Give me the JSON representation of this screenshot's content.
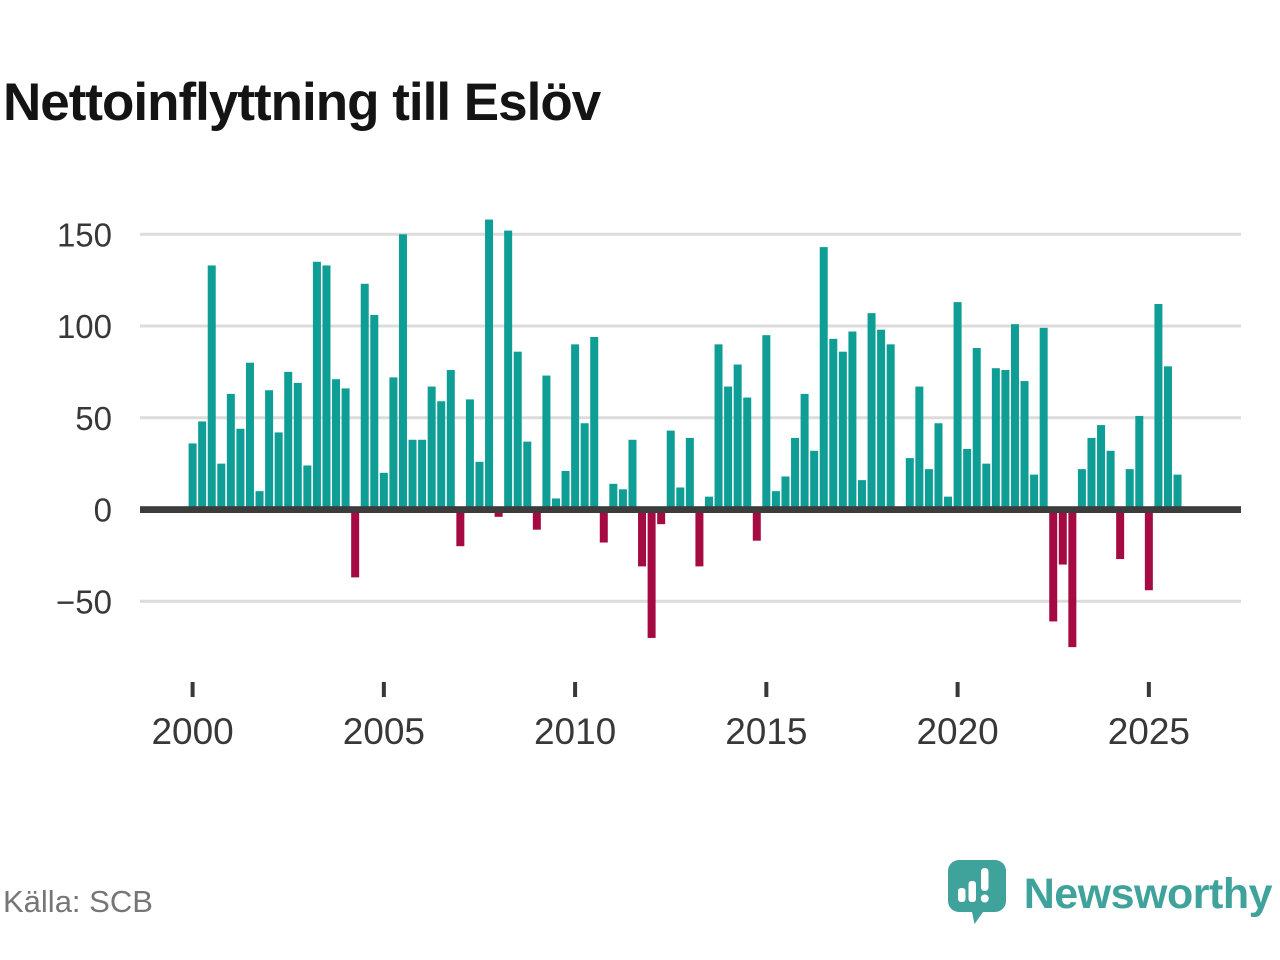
{
  "title": "Nettoinflyttning till Eslöv",
  "source": "Källa: SCB",
  "brand": {
    "name": "Newsworthy",
    "icon": "bar-chart-speech-bubble-icon"
  },
  "colors": {
    "positive_bar": "#0E9E96",
    "negative_bar": "#A50B42",
    "gridline": "#DCDCDC",
    "zero_line": "#3C3C3C",
    "axis_text": "#383838",
    "title_text": "#141414",
    "source_text": "#767676",
    "brand_teal": "#3FA39B"
  },
  "chart_data": {
    "type": "bar",
    "title": "Nettoinflyttning till Eslöv",
    "xlabel": "",
    "ylabel": "",
    "frequency": "quarterly",
    "start_year": 2000,
    "end_year": 2025,
    "x_tick_labels": [
      "2000",
      "2005",
      "2010",
      "2015",
      "2020",
      "2025"
    ],
    "y_ticks": [
      150,
      100,
      50,
      0,
      -50
    ],
    "y_tick_labels": [
      "150",
      "100",
      "50",
      "0",
      "−50"
    ],
    "ylim": [
      -82,
      164
    ],
    "grid": "horizontal",
    "legend": "none",
    "values": [
      36,
      48,
      133,
      25,
      63,
      44,
      80,
      10,
      65,
      42,
      75,
      69,
      24,
      135,
      133,
      71,
      66,
      -37,
      123,
      106,
      20,
      72,
      150,
      38,
      38,
      67,
      59,
      76,
      -20,
      60,
      26,
      158,
      -4,
      152,
      86,
      37,
      -11,
      73,
      6,
      21,
      90,
      47,
      94,
      -18,
      14,
      11,
      38,
      -31,
      -70,
      -8,
      43,
      12,
      39,
      -31,
      7,
      90,
      67,
      79,
      61,
      -17,
      95,
      10,
      18,
      39,
      63,
      32,
      143,
      93,
      86,
      97,
      16,
      107,
      98,
      90,
      0,
      28,
      67,
      22,
      47,
      7,
      113,
      33,
      88,
      25,
      77,
      76,
      101,
      70,
      19,
      99,
      -61,
      -30,
      -75,
      22,
      39,
      46,
      32,
      -27,
      22,
      51,
      -44,
      112,
      78,
      19
    ]
  }
}
